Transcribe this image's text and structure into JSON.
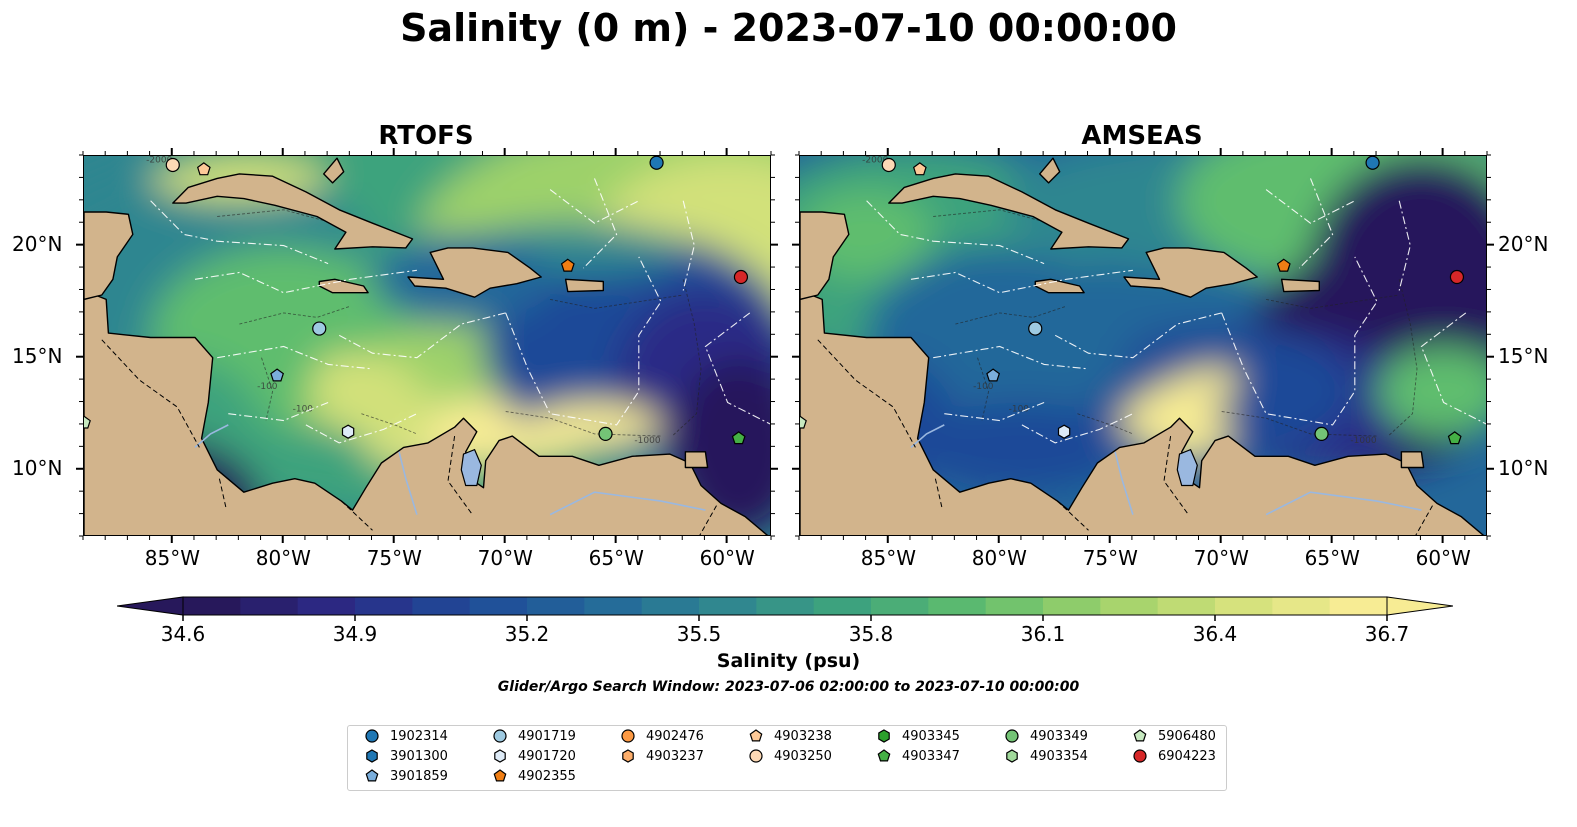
{
  "title": "Salinity (0 m) - 2023-07-10 00:00:00",
  "panels": [
    {
      "title": "RTOFS"
    },
    {
      "title": "AMSEAS"
    }
  ],
  "axes": {
    "lon_ticks": [
      "85°W",
      "80°W",
      "75°W",
      "70°W",
      "65°W",
      "60°W"
    ],
    "lat_ticks": [
      "20°N",
      "15°N",
      "10°N"
    ],
    "lon_range": [
      -89,
      -58
    ],
    "lat_range": [
      7,
      24
    ]
  },
  "colorbar": {
    "label": "Salinity (psu)",
    "ticks": [
      "34.6",
      "34.9",
      "35.2",
      "35.5",
      "35.8",
      "36.1",
      "36.4",
      "36.7"
    ],
    "min": 34.6,
    "max": 36.7,
    "colors": [
      "#27185b",
      "#2c2a86",
      "#1f4a98",
      "#23679a",
      "#2f8690",
      "#3ea37d",
      "#5fbd6e",
      "#9dd16a",
      "#d2e17a",
      "#f7ec94"
    ],
    "extend": "both"
  },
  "search_window": "Glider/Argo Search Window: 2023-07-06 02:00:00 to 2023-07-10 00:00:00",
  "contour_labels": [
    "-100",
    "-1000",
    "-2000"
  ],
  "colors": {
    "land": "#d2b48c",
    "pacific_amseas": "#9ab8e0",
    "frame": "#000000"
  },
  "legend": [
    {
      "id": "1902314",
      "shape": "circle",
      "color": "#1f77b4"
    },
    {
      "id": "3901300",
      "shape": "hexagon",
      "color": "#1f77b4"
    },
    {
      "id": "3901859",
      "shape": "pentagon",
      "color": "#7aaedc"
    },
    {
      "id": "4901719",
      "shape": "circle",
      "color": "#9ecae1"
    },
    {
      "id": "4901720",
      "shape": "hexagon",
      "color": "#deebf7"
    },
    {
      "id": "4902355",
      "shape": "pentagon",
      "color": "#f07e14"
    },
    {
      "id": "4902476",
      "shape": "circle",
      "color": "#fd9a44"
    },
    {
      "id": "4903237",
      "shape": "hexagon",
      "color": "#fdae6b"
    },
    {
      "id": "4903238",
      "shape": "pentagon",
      "color": "#fdc998"
    },
    {
      "id": "4903250",
      "shape": "circle",
      "color": "#fdd9b5"
    },
    {
      "id": "4903345",
      "shape": "hexagon",
      "color": "#2ca02c"
    },
    {
      "id": "4903347",
      "shape": "pentagon",
      "color": "#45b045"
    },
    {
      "id": "4903349",
      "shape": "circle",
      "color": "#74c476"
    },
    {
      "id": "4903354",
      "shape": "hexagon",
      "color": "#a1d99b"
    },
    {
      "id": "5906480",
      "shape": "pentagon",
      "color": "#c7e9c0"
    },
    {
      "id": "6904223",
      "shape": "circle",
      "color": "#d62728"
    }
  ],
  "floats": [
    {
      "id": "4903250",
      "lon": -85.0,
      "lat": 23.6
    },
    {
      "id": "4903238",
      "lon": -83.6,
      "lat": 23.4
    },
    {
      "id": "1902314",
      "lon": -63.2,
      "lat": 23.7
    },
    {
      "id": "4902355",
      "lon": -67.2,
      "lat": 19.1
    },
    {
      "id": "6904223",
      "lon": -59.4,
      "lat": 18.6
    },
    {
      "id": "4901719",
      "lon": -78.4,
      "lat": 16.3
    },
    {
      "id": "3901859",
      "lon": -80.3,
      "lat": 14.2
    },
    {
      "id": "4901720",
      "lon": -77.1,
      "lat": 11.7
    },
    {
      "id": "4903349",
      "lon": -65.5,
      "lat": 11.6
    },
    {
      "id": "4903347",
      "lon": -59.5,
      "lat": 11.4
    },
    {
      "id": "5906480",
      "lon": -89.0,
      "lat": 12.1
    }
  ]
}
